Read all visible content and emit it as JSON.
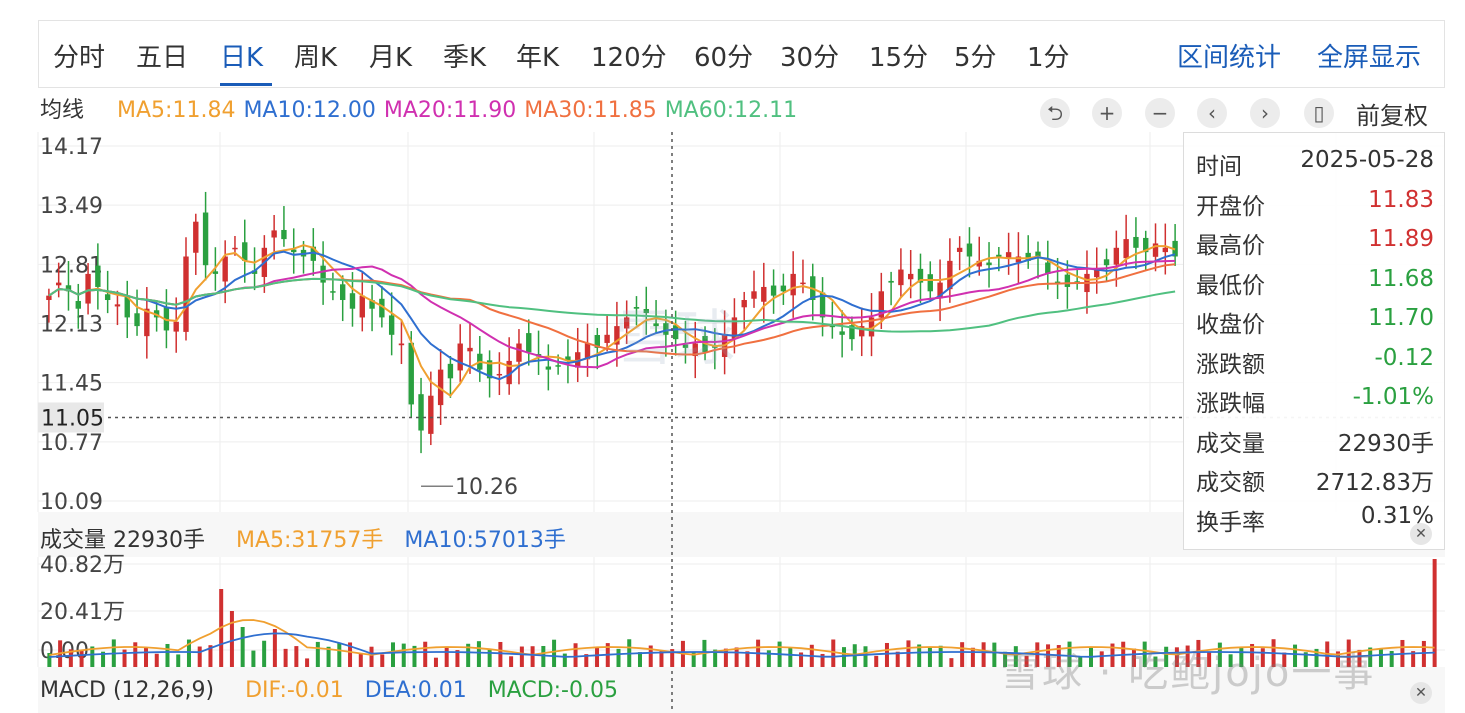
{
  "tabs": [
    "分时",
    "五日",
    "日K",
    "周K",
    "月K",
    "季K",
    "年K",
    "120分",
    "60分",
    "30分",
    "15分",
    "5分",
    "1分"
  ],
  "active_tab": "日K",
  "right_tabs": [
    "区间统计",
    "全屏显示"
  ],
  "ma_legend": {
    "label": "均线",
    "items": [
      {
        "text": "MA5:11.84",
        "color": "#f0a030"
      },
      {
        "text": "MA10:12.00",
        "color": "#2f6fd0"
      },
      {
        "text": "MA20:11.90",
        "color": "#d030b0"
      },
      {
        "text": "MA30:11.85",
        "color": "#f07040"
      },
      {
        "text": "MA60:12.11",
        "color": "#50c080"
      }
    ]
  },
  "toolbar": {
    "icons": [
      "undo-icon",
      "zoom-in-icon",
      "zoom-out-icon",
      "prev-icon",
      "next-icon",
      "candle-icon"
    ],
    "adjust_label": "前复权"
  },
  "price_axis": [
    "14.17",
    "13.49",
    "12.81",
    "12.13",
    "11.45",
    "10.77",
    "10.09"
  ],
  "crosshair_price": "11.05",
  "low_annotation": "10.26",
  "info": {
    "rows": [
      {
        "k": "时间",
        "v": "2025-05-28",
        "color": "#333333"
      },
      {
        "k": "开盘价",
        "v": "11.83",
        "color": "#d03030"
      },
      {
        "k": "最高价",
        "v": "11.89",
        "color": "#d03030"
      },
      {
        "k": "最低价",
        "v": "11.68",
        "color": "#2aa040"
      },
      {
        "k": "收盘价",
        "v": "11.70",
        "color": "#2aa040"
      },
      {
        "k": "涨跌额",
        "v": "-0.12",
        "color": "#2aa040"
      },
      {
        "k": "涨跌幅",
        "v": "-1.01%",
        "color": "#2aa040"
      },
      {
        "k": "成交量",
        "v": "22930手",
        "color": "#333333"
      },
      {
        "k": "成交额",
        "v": "2712.83万",
        "color": "#333333"
      },
      {
        "k": "换手率",
        "v": "0.31%",
        "color": "#333333"
      }
    ]
  },
  "volume_legend": {
    "label": "成交量 22930手",
    "ma5": "MA5:31757手",
    "ma10": "MA10:57013手"
  },
  "volume_axis": [
    "40.82万",
    "20.41万",
    "0.00"
  ],
  "macd_legend": {
    "label": "MACD (12,26,9)",
    "dif": "DIF:-0.01",
    "dea": "DEA:0.01",
    "macd": "MACD:-0.05"
  },
  "watermark": "雪球 · 吃鲍jojo一事",
  "center_logo": "雪球",
  "colors": {
    "up": "#d03030",
    "down": "#2aa040",
    "accent": "#1a5cb8"
  },
  "chart_data": {
    "type": "candlestick",
    "price_range": [
      10.09,
      14.17
    ],
    "closes": [
      12.45,
      12.6,
      12.5,
      12.3,
      12.7,
      12.55,
      12.4,
      12.35,
      12.2,
      12.1,
      12.3,
      12.2,
      12.05,
      12.15,
      12.9,
      13.3,
      12.8,
      12.7,
      12.9,
      13.0,
      12.85,
      12.7,
      13.0,
      13.2,
      13.1,
      12.95,
      12.9,
      12.85,
      12.6,
      12.5,
      12.4,
      12.3,
      12.45,
      12.3,
      12.2,
      12.0,
      11.9,
      11.2,
      10.9,
      11.3,
      11.6,
      11.5,
      11.9,
      11.85,
      11.6,
      11.5,
      11.55,
      11.7,
      11.9,
      11.8,
      11.75,
      11.6,
      11.65,
      11.7,
      11.8,
      11.9,
      11.85,
      12.0,
      12.1,
      12.2,
      12.3,
      12.25,
      12.1,
      12.0,
      11.95,
      11.85,
      11.9,
      11.8,
      11.85,
      12.0,
      12.2,
      12.4,
      12.5,
      12.55,
      12.45,
      12.5,
      12.7,
      12.6,
      12.4,
      12.2,
      12.1,
      12.0,
      11.95,
      12.1,
      12.2,
      12.5,
      12.6,
      12.75,
      12.7,
      12.6,
      12.5,
      12.6,
      12.85,
      13.0,
      12.9,
      12.85,
      12.8,
      12.9,
      12.95,
      12.9,
      12.85,
      12.9,
      12.7,
      12.6,
      12.55,
      12.6,
      12.7,
      12.75,
      12.8,
      13.0,
      13.1,
      13.0,
      12.95,
      13.05,
      13.0,
      12.9
    ]
  }
}
